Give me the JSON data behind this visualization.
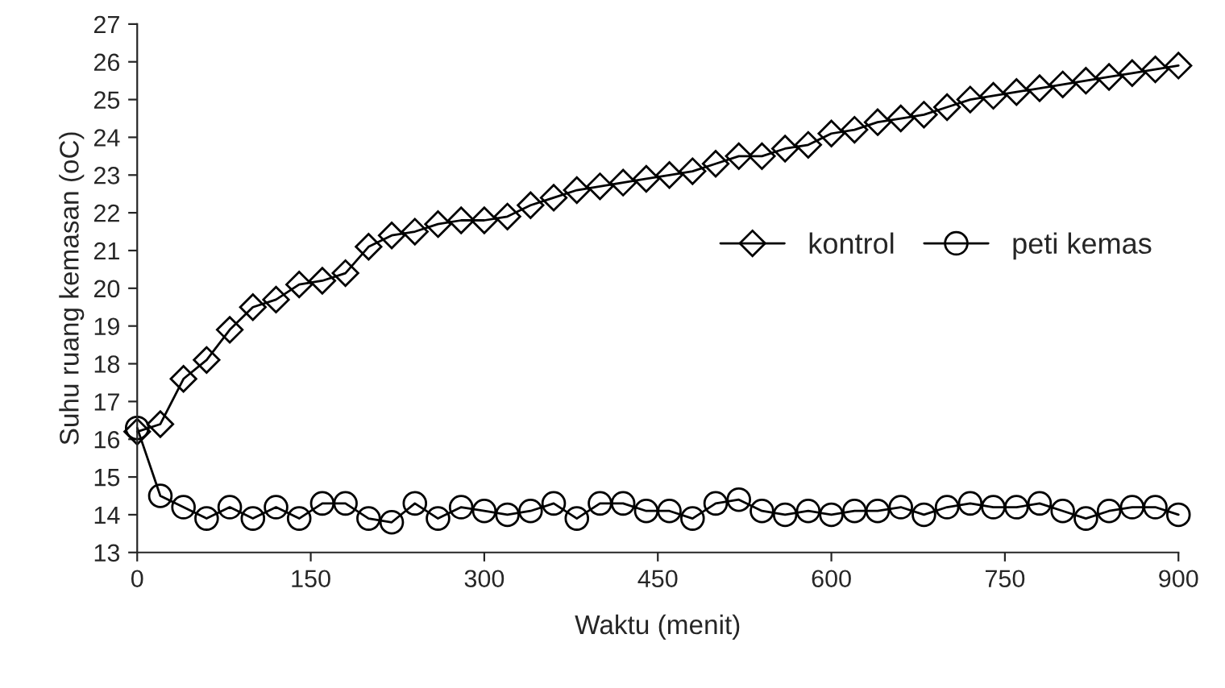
{
  "chart_data": {
    "type": "line",
    "xlabel": "Waktu (menit)",
    "ylabel": "Suhu ruang kemasan (oC)",
    "x": [
      0,
      20,
      40,
      60,
      80,
      100,
      120,
      140,
      160,
      180,
      200,
      220,
      240,
      260,
      280,
      300,
      320,
      340,
      360,
      380,
      400,
      420,
      440,
      460,
      480,
      500,
      520,
      540,
      560,
      580,
      600,
      620,
      640,
      660,
      680,
      700,
      720,
      740,
      760,
      780,
      800,
      820,
      840,
      860,
      880,
      900
    ],
    "series": [
      {
        "name": "kontrol",
        "color": "#000000",
        "marker": "diamond",
        "values": [
          16.2,
          16.4,
          17.6,
          18.1,
          18.9,
          19.5,
          19.7,
          20.1,
          20.2,
          20.4,
          21.1,
          21.4,
          21.5,
          21.7,
          21.8,
          21.8,
          21.9,
          22.2,
          22.4,
          22.6,
          22.7,
          22.8,
          22.9,
          23.0,
          23.1,
          23.3,
          23.5,
          23.5,
          23.7,
          23.8,
          24.1,
          24.2,
          24.4,
          24.5,
          24.6,
          24.8,
          25.0,
          25.1,
          25.2,
          25.3,
          25.4,
          25.5,
          25.6,
          25.7,
          25.8,
          25.9
        ]
      },
      {
        "name": "peti kemas",
        "color": "#000000",
        "marker": "circle",
        "values": [
          16.3,
          14.5,
          14.2,
          13.9,
          14.2,
          13.9,
          14.2,
          13.9,
          14.3,
          14.3,
          13.9,
          13.8,
          14.3,
          13.9,
          14.2,
          14.1,
          14.0,
          14.1,
          14.3,
          13.9,
          14.3,
          14.3,
          14.1,
          14.1,
          13.9,
          14.3,
          14.4,
          14.1,
          14.0,
          14.1,
          14.0,
          14.1,
          14.1,
          14.2,
          14.0,
          14.2,
          14.3,
          14.2,
          14.2,
          14.3,
          14.1,
          13.9,
          14.1,
          14.2,
          14.2,
          14.0
        ]
      }
    ],
    "xlim": [
      0,
      900
    ],
    "xticks": [
      0,
      150,
      300,
      450,
      600,
      750,
      900
    ],
    "ylim": [
      13,
      27
    ],
    "yticks": [
      13,
      14,
      15,
      16,
      17,
      18,
      19,
      20,
      21,
      22,
      23,
      24,
      25,
      26,
      27
    ],
    "grid": false,
    "legend": "right",
    "line_style": "solid"
  }
}
